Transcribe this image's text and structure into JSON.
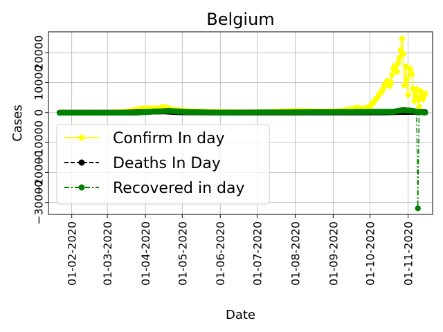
{
  "chart_data": {
    "type": "line",
    "title": "Belgium",
    "xlabel": "Date",
    "ylabel": "Cases",
    "x_start": "2020-01-22",
    "x_end": "2020-11-15",
    "xlim": [
      "2020-01-13",
      "2020-11-21"
    ],
    "ylim": [
      -34000,
      27000
    ],
    "grid": true,
    "legend_position": "center-left",
    "x_tick_labels": [
      "01-02-2020",
      "01-03-2020",
      "01-04-2020",
      "01-05-2020",
      "01-06-2020",
      "01-07-2020",
      "01-08-2020",
      "01-09-2020",
      "01-10-2020",
      "01-11-2020"
    ],
    "x_tick_dates": [
      "2020-02-01",
      "2020-03-01",
      "2020-04-01",
      "2020-05-01",
      "2020-06-01",
      "2020-07-01",
      "2020-08-01",
      "2020-09-01",
      "2020-10-01",
      "2020-11-01"
    ],
    "y_tick_labels": [
      "−30000",
      "−20000",
      "−10000",
      "0",
      "10000",
      "20000"
    ],
    "y_tick_values": [
      -30000,
      -20000,
      -10000,
      0,
      10000,
      20000
    ],
    "series": [
      {
        "name": "Confirm In day",
        "color": "#ffff00",
        "linestyle": "solid",
        "anchors": [
          [
            "2020-01-22",
            0
          ],
          [
            "2020-03-01",
            0
          ],
          [
            "2020-03-15",
            200
          ],
          [
            "2020-03-25",
            1000
          ],
          [
            "2020-04-01",
            1500
          ],
          [
            "2020-04-10",
            1300
          ],
          [
            "2020-04-15",
            1900
          ],
          [
            "2020-04-25",
            900
          ],
          [
            "2020-05-10",
            400
          ],
          [
            "2020-05-25",
            200
          ],
          [
            "2020-06-15",
            100
          ],
          [
            "2020-07-10",
            150
          ],
          [
            "2020-07-25",
            500
          ],
          [
            "2020-08-05",
            650
          ],
          [
            "2020-08-20",
            350
          ],
          [
            "2020-09-01",
            450
          ],
          [
            "2020-09-10",
            700
          ],
          [
            "2020-09-20",
            1600
          ],
          [
            "2020-09-25",
            1300
          ],
          [
            "2020-10-01",
            2000
          ],
          [
            "2020-10-05",
            4000
          ],
          [
            "2020-10-08",
            6000
          ],
          [
            "2020-10-12",
            8000
          ],
          [
            "2020-10-15",
            10500
          ],
          [
            "2020-10-17",
            9000
          ],
          [
            "2020-10-19",
            13000
          ],
          [
            "2020-10-21",
            16000
          ],
          [
            "2020-10-23",
            13000
          ],
          [
            "2020-10-26",
            21000
          ],
          [
            "2020-10-27",
            24000
          ],
          [
            "2020-10-28",
            20000
          ],
          [
            "2020-10-29",
            10000
          ],
          [
            "2020-10-30",
            16000
          ],
          [
            "2020-11-01",
            6000
          ],
          [
            "2020-11-02",
            15000
          ],
          [
            "2020-11-04",
            12000
          ],
          [
            "2020-11-06",
            4000
          ],
          [
            "2020-11-08",
            8000
          ],
          [
            "2020-11-10",
            2000
          ],
          [
            "2020-11-11",
            7000
          ],
          [
            "2020-11-13",
            4500
          ],
          [
            "2020-11-15",
            6000
          ]
        ]
      },
      {
        "name": "Deaths In Day",
        "color": "#000000",
        "linestyle": "dashed",
        "anchors": [
          [
            "2020-01-22",
            0
          ],
          [
            "2020-03-15",
            0
          ],
          [
            "2020-04-05",
            300
          ],
          [
            "2020-04-15",
            400
          ],
          [
            "2020-05-01",
            100
          ],
          [
            "2020-06-01",
            0
          ],
          [
            "2020-10-10",
            50
          ],
          [
            "2020-10-25",
            200
          ],
          [
            "2020-11-05",
            250
          ],
          [
            "2020-11-15",
            150
          ]
        ]
      },
      {
        "name": "Recovered in day",
        "color": "#008000",
        "linestyle": "dashdot",
        "anchors": [
          [
            "2020-01-22",
            0
          ],
          [
            "2020-03-25",
            0
          ],
          [
            "2020-04-10",
            400
          ],
          [
            "2020-04-20",
            600
          ],
          [
            "2020-05-05",
            200
          ],
          [
            "2020-06-01",
            0
          ],
          [
            "2020-10-20",
            300
          ],
          [
            "2020-10-28",
            900
          ],
          [
            "2020-11-05",
            600
          ],
          [
            "2020-11-08",
            300
          ],
          [
            "2020-11-09",
            -31000
          ],
          [
            "2020-11-10",
            200
          ],
          [
            "2020-11-15",
            0
          ]
        ]
      }
    ]
  }
}
